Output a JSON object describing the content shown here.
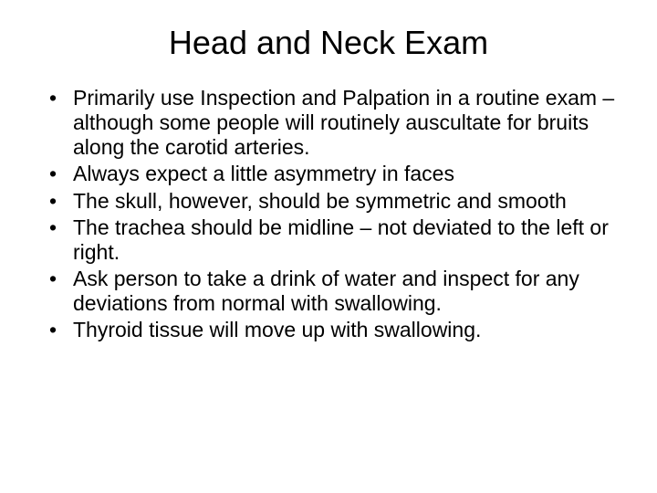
{
  "slide": {
    "title": "Head and Neck Exam",
    "bullets": [
      "Primarily use Inspection and Palpation in a routine exam – although some people will routinely auscultate for bruits along the carotid arteries.",
      "Always expect a little asymmetry in faces",
      "The skull, however, should be symmetric and smooth",
      "The trachea should be midline – not deviated to the left or right.",
      "Ask person to take a drink of water and inspect for any deviations from normal with swallowing.",
      "Thyroid tissue will move up with swallowing."
    ],
    "title_fontsize": 36,
    "bullet_fontsize": 23,
    "text_color": "#000000",
    "background_color": "#ffffff",
    "font_family": "Arial"
  }
}
